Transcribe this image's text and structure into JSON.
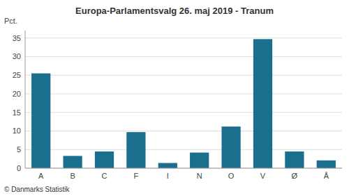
{
  "chart_data": {
    "type": "bar",
    "title": "Europa-Parlamentsvalg 26. maj 2019 - Tranum",
    "categories": [
      "A",
      "B",
      "C",
      "F",
      "I",
      "N",
      "O",
      "V",
      "Ø",
      "Å"
    ],
    "values": [
      25.5,
      3.3,
      4.5,
      9.7,
      1.4,
      4.2,
      11.2,
      34.7,
      4.5,
      2.1
    ],
    "color": "#1a6e8e",
    "ylabel": "Pct.",
    "ylim": [
      0,
      37
    ],
    "yticks": [
      0,
      5,
      10,
      15,
      20,
      25,
      30,
      35
    ],
    "grid": true,
    "annotations": [
      "© Danmarks Statistik"
    ]
  }
}
